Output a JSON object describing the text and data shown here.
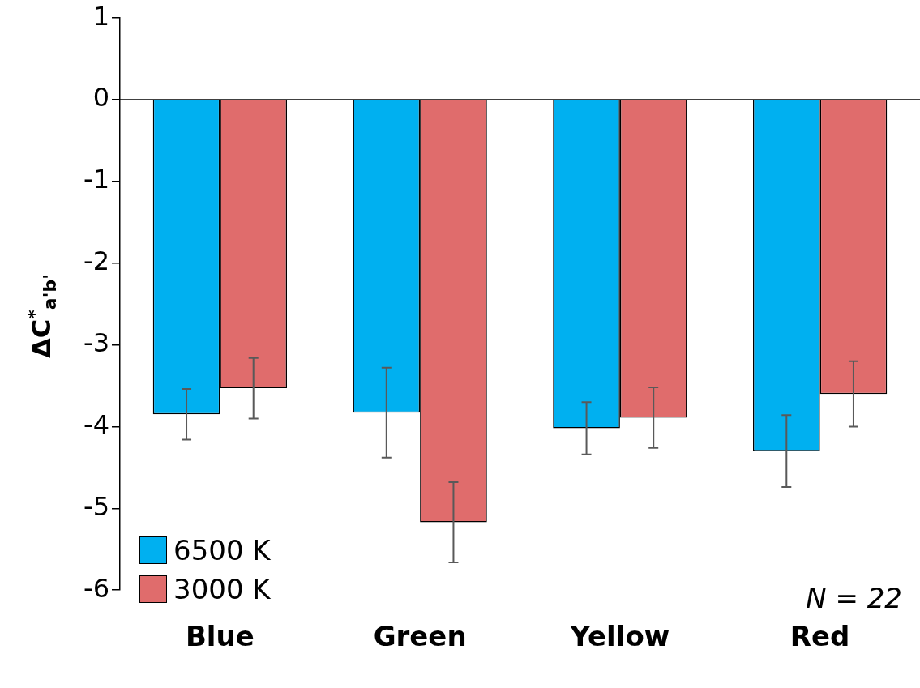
{
  "chart_data": {
    "type": "bar",
    "ylabel": "ΔC$^{*}$$_{a'b'}$",
    "categories": [
      "Blue",
      "Green",
      "Yellow",
      "Red"
    ],
    "series": [
      {
        "name": "6500 K",
        "color": "#00b0f0",
        "values": [
          -3.85,
          -3.83,
          -4.02,
          -4.3
        ],
        "errors": [
          0.31,
          0.55,
          0.32,
          0.44
        ]
      },
      {
        "name": "3000 K",
        "color": "#e06c6c",
        "values": [
          -3.53,
          -5.17,
          -3.89,
          -3.6
        ],
        "errors": [
          0.37,
          0.49,
          0.37,
          0.4
        ]
      }
    ],
    "ylim": [
      -6,
      1
    ],
    "yticks": [
      -6,
      -5,
      -4,
      -3,
      -2,
      -1,
      0,
      1
    ],
    "legend": "bottom left",
    "annotations": [
      "N = 22"
    ]
  }
}
